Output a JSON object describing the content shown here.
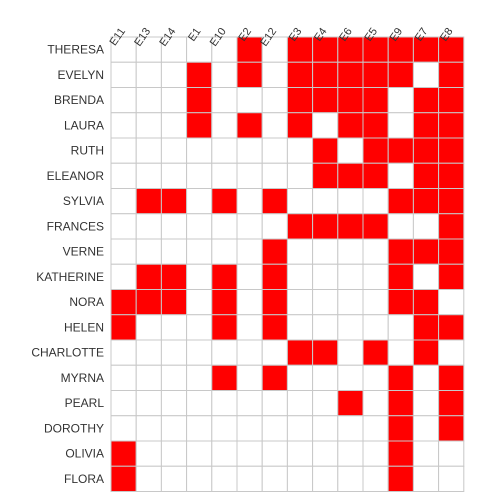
{
  "chart_data": {
    "type": "heatmap",
    "title": "",
    "xlabel": "",
    "ylabel": "",
    "columns": [
      "E11",
      "E13",
      "E14",
      "E1",
      "E10",
      "E2",
      "E12",
      "E3",
      "E4",
      "E6",
      "E5",
      "E9",
      "E7",
      "E8"
    ],
    "rows": [
      "THERESA",
      "EVELYN",
      "BRENDA",
      "LAURA",
      "RUTH",
      "ELEANOR",
      "SYLVIA",
      "FRANCES",
      "VERNE",
      "KATHERINE",
      "NORA",
      "HELEN",
      "CHARLOTTE",
      "MYRNA",
      "PEARL",
      "DOROTHY",
      "OLIVIA",
      "FLORA"
    ],
    "matrix": [
      [
        0,
        0,
        0,
        0,
        0,
        1,
        0,
        1,
        1,
        1,
        1,
        1,
        1,
        1
      ],
      [
        0,
        0,
        0,
        1,
        0,
        1,
        0,
        1,
        1,
        1,
        1,
        1,
        0,
        1
      ],
      [
        0,
        0,
        0,
        1,
        0,
        0,
        0,
        1,
        1,
        1,
        1,
        0,
        1,
        1
      ],
      [
        0,
        0,
        0,
        1,
        0,
        1,
        0,
        1,
        0,
        1,
        1,
        0,
        1,
        1
      ],
      [
        0,
        0,
        0,
        0,
        0,
        0,
        0,
        0,
        1,
        0,
        1,
        1,
        1,
        1
      ],
      [
        0,
        0,
        0,
        0,
        0,
        0,
        0,
        0,
        1,
        1,
        1,
        0,
        1,
        1
      ],
      [
        0,
        1,
        1,
        0,
        1,
        0,
        1,
        0,
        0,
        0,
        0,
        1,
        1,
        1
      ],
      [
        0,
        0,
        0,
        0,
        0,
        0,
        0,
        1,
        1,
        1,
        1,
        0,
        0,
        1
      ],
      [
        0,
        0,
        0,
        0,
        0,
        0,
        1,
        0,
        0,
        0,
        0,
        1,
        1,
        1
      ],
      [
        0,
        1,
        1,
        0,
        1,
        0,
        1,
        0,
        0,
        0,
        0,
        1,
        0,
        1
      ],
      [
        1,
        1,
        1,
        0,
        1,
        0,
        1,
        0,
        0,
        0,
        0,
        1,
        1,
        0
      ],
      [
        1,
        0,
        0,
        0,
        1,
        0,
        1,
        0,
        0,
        0,
        0,
        0,
        1,
        1
      ],
      [
        0,
        0,
        0,
        0,
        0,
        0,
        0,
        1,
        1,
        0,
        1,
        0,
        1,
        0
      ],
      [
        0,
        0,
        0,
        0,
        1,
        0,
        1,
        0,
        0,
        0,
        0,
        1,
        0,
        1
      ],
      [
        0,
        0,
        0,
        0,
        0,
        0,
        0,
        0,
        0,
        1,
        0,
        1,
        0,
        1
      ],
      [
        0,
        0,
        0,
        0,
        0,
        0,
        0,
        0,
        0,
        0,
        0,
        1,
        0,
        1
      ],
      [
        1,
        0,
        0,
        0,
        0,
        0,
        0,
        0,
        0,
        0,
        0,
        1,
        0,
        0
      ],
      [
        1,
        0,
        0,
        0,
        0,
        0,
        0,
        0,
        0,
        0,
        0,
        1,
        0,
        0
      ]
    ],
    "colors": {
      "on": "#ff0000",
      "off": "#ffffff",
      "grid": "#c8c8c8"
    },
    "grid": true,
    "legend": "none"
  }
}
